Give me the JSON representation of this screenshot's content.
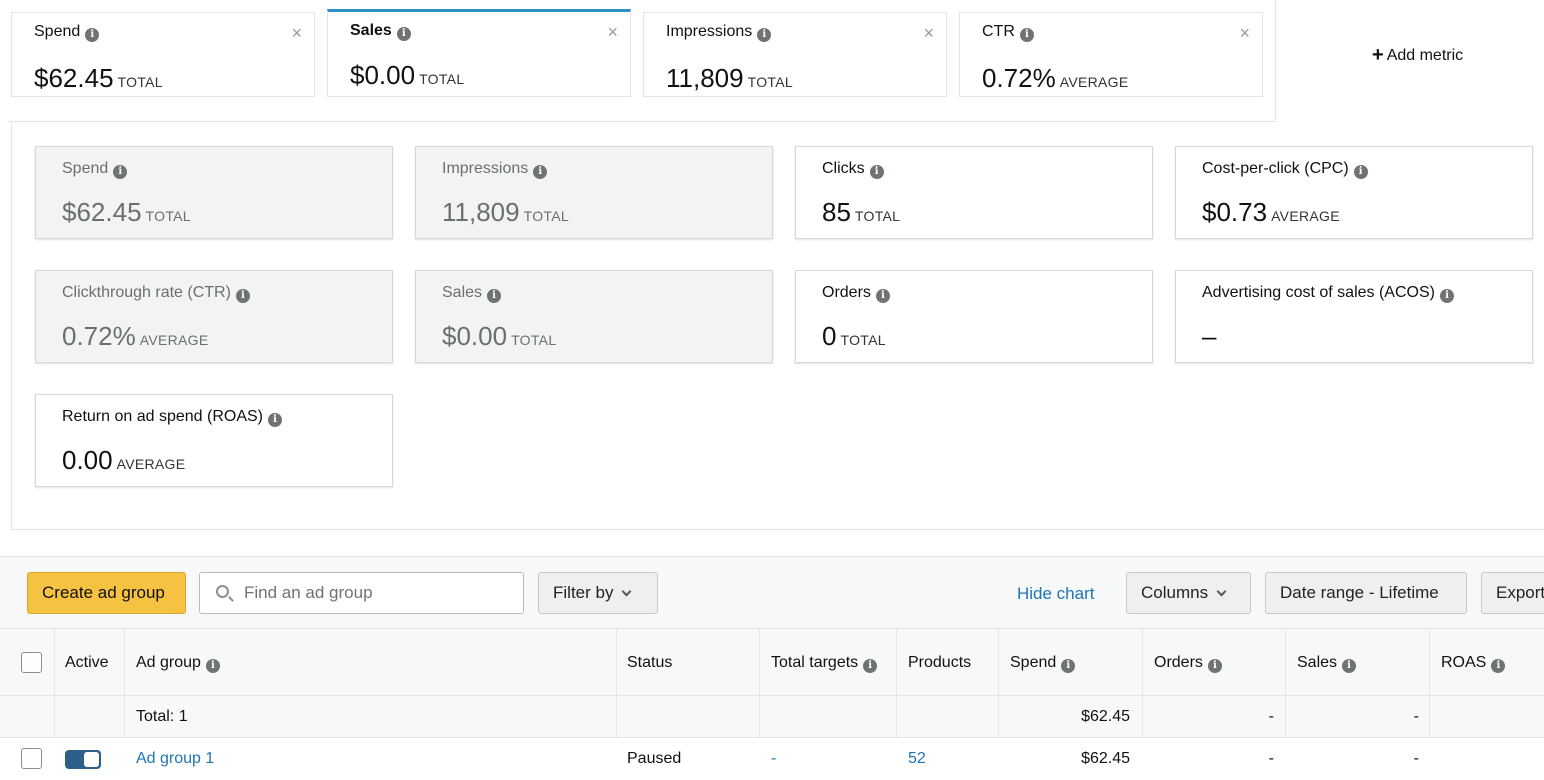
{
  "metric_tabs": [
    {
      "label": "Spend",
      "value": "$62.45",
      "suffix": "TOTAL",
      "active": false
    },
    {
      "label": "Sales",
      "value": "$0.00",
      "suffix": "TOTAL",
      "active": true
    },
    {
      "label": "Impressions",
      "value": "11,809",
      "suffix": "TOTAL",
      "active": false
    },
    {
      "label": "CTR",
      "value": "0.72%",
      "suffix": "AVERAGE",
      "active": false
    }
  ],
  "add_metric_label": "Add metric",
  "metric_cards": [
    {
      "label": "Spend",
      "value": "$62.45",
      "suffix": "TOTAL",
      "selected": true
    },
    {
      "label": "Impressions",
      "value": "11,809",
      "suffix": "TOTAL",
      "selected": true
    },
    {
      "label": "Clicks",
      "value": "85",
      "suffix": "TOTAL",
      "selected": false
    },
    {
      "label": "Cost-per-click (CPC)",
      "value": "$0.73",
      "suffix": "AVERAGE",
      "selected": false
    },
    {
      "label": "Clickthrough rate (CTR)",
      "value": "0.72%",
      "suffix": "AVERAGE",
      "selected": true
    },
    {
      "label": "Sales",
      "value": "$0.00",
      "suffix": "TOTAL",
      "selected": true
    },
    {
      "label": "Orders",
      "value": "0",
      "suffix": "TOTAL",
      "selected": false
    },
    {
      "label": "Advertising cost of sales (ACOS)",
      "value": "–",
      "suffix": "",
      "selected": false
    },
    {
      "label": "Return on ad spend (ROAS)",
      "value": "0.00",
      "suffix": "AVERAGE",
      "selected": false
    }
  ],
  "toolbar": {
    "create_label": "Create ad group",
    "search_placeholder": "Find an ad group",
    "filter_label": "Filter by",
    "hide_chart_label": "Hide chart",
    "columns_label": "Columns",
    "date_range_label": "Date range - Lifetime",
    "export_label": "Export"
  },
  "table": {
    "headers": {
      "active": "Active",
      "ad_group": "Ad group",
      "status": "Status",
      "total_targets": "Total targets",
      "products": "Products",
      "spend": "Spend",
      "orders": "Orders",
      "sales": "Sales",
      "roas": "ROAS"
    },
    "total_row": {
      "label": "Total: 1",
      "spend": "$62.45",
      "orders": "-",
      "sales": "-"
    },
    "rows": [
      {
        "ad_group": "Ad group 1",
        "status": "Paused",
        "total_targets": "-",
        "products": "52",
        "spend": "$62.45",
        "orders": "-",
        "sales": "-"
      }
    ]
  }
}
